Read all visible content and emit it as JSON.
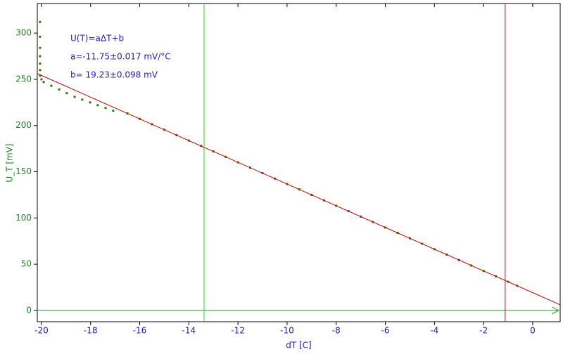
{
  "chart_data": {
    "type": "scatter",
    "xlabel": "dT [C]",
    "ylabel": "U_T [mV]",
    "annotations": [
      "U(T)=aΔT+b",
      "a=-11.75±0.017 mV/°C",
      "b= 19.23±0.098 mV"
    ],
    "xlim": [
      -20.17,
      1.12
    ],
    "ylim": [
      -12.2,
      332
    ],
    "xticks": [
      -20,
      -18,
      -16,
      -14,
      -12,
      -10,
      -8,
      -6,
      -4,
      -2,
      0
    ],
    "yticks": [
      0,
      50,
      100,
      150,
      200,
      250,
      300
    ],
    "series": [
      {
        "name": "U_T",
        "color": "#2f7a00",
        "x": [
          -20.06,
          -20.06,
          -20.06,
          -20.06,
          -20.06,
          -20.06,
          -20.06,
          -20.0,
          -19.91,
          -19.6,
          -19.28,
          -18.97,
          -18.65,
          -18.34,
          -18.02,
          -17.71,
          -17.39,
          -17.08,
          -16.5,
          -16,
          -15.5,
          -15,
          -14.5,
          -14,
          -13.5,
          -13,
          -12.5,
          -12,
          -11.5,
          -11,
          -10.5,
          -10,
          -9.5,
          -9,
          -8.5,
          -8,
          -7.5,
          -7,
          -6.5,
          -6,
          -5.5,
          -5,
          -4.5,
          -4,
          -3.5,
          -3,
          -2.5,
          -2,
          -1.5,
          -1,
          -0.63
        ],
        "values": [
          312,
          296,
          284,
          275,
          267,
          260,
          254,
          250,
          247,
          243,
          239,
          235,
          231,
          228,
          225,
          222,
          219,
          216,
          213.1,
          207.2,
          201.4,
          195.5,
          189.6,
          183.7,
          177.9,
          172.0,
          166.1,
          160.2,
          154.4,
          148.5,
          142.6,
          136.7,
          130.9,
          125.0,
          119.1,
          113.2,
          107.4,
          101.5,
          95.6,
          89.7,
          83.9,
          78.0,
          72.1,
          66.2,
          60.4,
          54.5,
          48.6,
          42.7,
          36.9,
          31.0,
          26.6
        ]
      },
      {
        "name": "fit",
        "color": "#cc0000",
        "x": [
          -20.17,
          1.12
        ],
        "values": [
          256.2,
          6.1
        ]
      }
    ],
    "cursors": [
      {
        "x": -13.38,
        "color": "#33cc33"
      },
      {
        "x": -1.12,
        "color": "#cc0000"
      }
    ],
    "axis_color": "#2a9a2a",
    "x_text_color": "#2020b0",
    "y_text_color": "#1a8a1a"
  }
}
